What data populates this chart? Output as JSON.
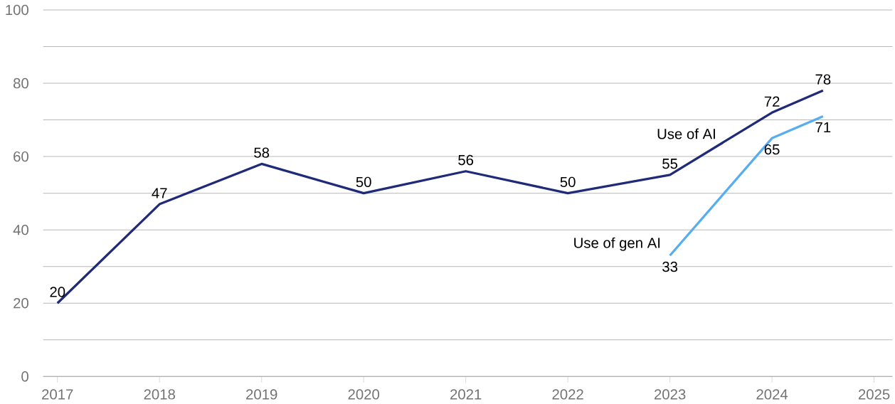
{
  "chart_data": {
    "type": "line",
    "xlim": [
      2016.86,
      2025.18
    ],
    "xticks": [
      2017,
      2018,
      2019,
      2020,
      2021,
      2022,
      2023,
      2024,
      2025
    ],
    "ylim": [
      0,
      100
    ],
    "yticks": [
      0,
      {
        "value": 10,
        "label": null
      },
      20,
      {
        "value": 30,
        "label": null
      },
      40,
      {
        "value": 50,
        "label": null
      },
      60,
      {
        "value": 70,
        "label": null
      },
      80,
      {
        "value": 90,
        "label": null
      },
      100
    ],
    "grid": "y",
    "marker": "none",
    "line_style": "solid",
    "data_labels": true,
    "series": [
      {
        "name": "Use of AI",
        "color": "#1f2a78",
        "x": [
          2017,
          2018,
          2019,
          2020,
          2021,
          2022,
          2023,
          2024,
          2024.5
        ],
        "values": [
          20,
          47,
          58,
          50,
          56,
          50,
          55,
          72,
          78
        ]
      },
      {
        "name": "Use of gen AI",
        "color": "#56aef0",
        "x": [
          2023,
          2024,
          2024.5
        ],
        "values": [
          33,
          65,
          71
        ]
      }
    ]
  }
}
